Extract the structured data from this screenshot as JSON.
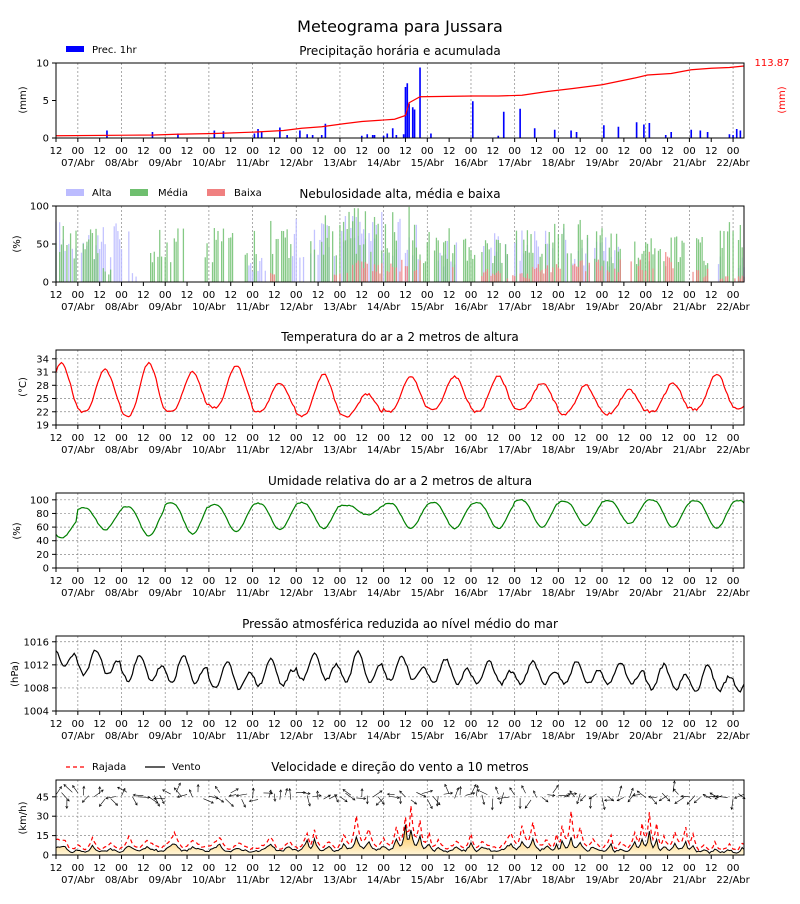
{
  "page": {
    "title": "Meteograma para Jussara"
  },
  "x_axis": {
    "start_index": 0,
    "end_index": 378,
    "hour_labels": [
      "12",
      "00",
      "12",
      "00",
      "12",
      "00",
      "12",
      "00",
      "12",
      "00",
      "12",
      "00",
      "12",
      "00",
      "12",
      "00",
      "12",
      "00",
      "12",
      "00",
      "12",
      "00",
      "12",
      "00",
      "12",
      "00",
      "12",
      "00",
      "12",
      "00",
      "12",
      "00"
    ],
    "date_labels": [
      "07/Abr",
      "08/Abr",
      "09/Abr",
      "10/Abr",
      "11/Abr",
      "12/Abr",
      "13/Abr",
      "14/Abr",
      "15/Abr",
      "16/Abr",
      "17/Abr",
      "18/Abr",
      "19/Abr",
      "20/Abr",
      "21/Abr",
      "22/Abr"
    ]
  },
  "chart_data": [
    {
      "id": "precip",
      "type": "bar",
      "title": "Precipitação horária e acumulada",
      "ylabel": "(mm)",
      "ylabel_right": "(mm)",
      "ylim": [
        0,
        10
      ],
      "yticks": [
        0,
        5,
        10
      ],
      "legend": [
        "Prec. 1hr"
      ],
      "colors": {
        "bars": "#0000ff",
        "accum": "#ff0000"
      },
      "accum_max_label": "113.87",
      "bars": [
        [
          28,
          1.0
        ],
        [
          53,
          0.8
        ],
        [
          67,
          0.6
        ],
        [
          87,
          1.0
        ],
        [
          92,
          0.9
        ],
        [
          109,
          0.6
        ],
        [
          111,
          1.2
        ],
        [
          113,
          0.8
        ],
        [
          123,
          1.4
        ],
        [
          127,
          0.4
        ],
        [
          134,
          1.0
        ],
        [
          138,
          0.5
        ],
        [
          141,
          0.4
        ],
        [
          146,
          0.4
        ],
        [
          148,
          1.9
        ],
        [
          168,
          0.3
        ],
        [
          171,
          0.5
        ],
        [
          174,
          0.4
        ],
        [
          175,
          0.4
        ],
        [
          180,
          0.3
        ],
        [
          182,
          0.6
        ],
        [
          185,
          1.3
        ],
        [
          187,
          0.4
        ],
        [
          191,
          0.5
        ],
        [
          192,
          6.8
        ],
        [
          193,
          7.3
        ],
        [
          194,
          4.6
        ],
        [
          196,
          4.1
        ],
        [
          197,
          3.8
        ],
        [
          200,
          9.4
        ],
        [
          206,
          0.6
        ],
        [
          229,
          4.9
        ],
        [
          246,
          3.5
        ],
        [
          243,
          0.3
        ],
        [
          255,
          3.9
        ],
        [
          263,
          1.3
        ],
        [
          274,
          1.1
        ],
        [
          283,
          1.0
        ],
        [
          286,
          0.8
        ],
        [
          301,
          1.7
        ],
        [
          309,
          1.5
        ],
        [
          319,
          2.1
        ],
        [
          323,
          1.8
        ],
        [
          326,
          2.0
        ],
        [
          335,
          0.4
        ],
        [
          338,
          0.8
        ],
        [
          349,
          1.1
        ],
        [
          358,
          0.8
        ],
        [
          354,
          1.0
        ],
        [
          370,
          0.5
        ],
        [
          372,
          0.4
        ],
        [
          374,
          1.2
        ],
        [
          376,
          1.0
        ]
      ],
      "accum_points": [
        [
          0,
          0.3
        ],
        [
          54,
          0.4
        ],
        [
          66,
          0.5
        ],
        [
          87,
          0.6
        ],
        [
          110,
          0.8
        ],
        [
          125,
          1.0
        ],
        [
          135,
          1.3
        ],
        [
          146,
          1.5
        ],
        [
          158,
          1.9
        ],
        [
          168,
          2.2
        ],
        [
          186,
          2.5
        ],
        [
          192,
          3.0
        ],
        [
          194,
          4.7
        ],
        [
          200,
          5.5
        ],
        [
          229,
          5.6
        ],
        [
          243,
          5.6
        ],
        [
          256,
          5.7
        ],
        [
          270,
          6.2
        ],
        [
          284,
          6.6
        ],
        [
          300,
          7.1
        ],
        [
          318,
          8.0
        ],
        [
          325,
          8.4
        ],
        [
          338,
          8.6
        ],
        [
          349,
          9.1
        ],
        [
          360,
          9.3
        ],
        [
          370,
          9.4
        ],
        [
          378,
          9.6
        ]
      ]
    },
    {
      "id": "clouds",
      "type": "bar",
      "title": "Nebulosidade alta, média e baixa",
      "ylabel": "(%)",
      "ylim": [
        0,
        100
      ],
      "yticks": [
        0,
        50,
        100
      ],
      "legend": [
        "Alta",
        "Média",
        "Baixa"
      ],
      "colors": {
        "alta": "#bcbcff",
        "media": "#6fbf6f",
        "baixa": "#f08080"
      },
      "alta_ranges": [
        [
          0,
          40,
          70
        ],
        [
          41,
          44,
          10
        ],
        [
          105,
          115,
          30
        ],
        [
          130,
          180,
          80
        ],
        [
          185,
          200,
          70
        ],
        [
          210,
          220,
          50
        ],
        [
          235,
          260,
          60
        ],
        [
          262,
          280,
          70
        ],
        [
          283,
          310,
          50
        ],
        [
          360,
          378,
          30
        ]
      ],
      "media_ranges": [
        [
          0,
          25,
          70
        ],
        [
          26,
          30,
          20
        ],
        [
          52,
          70,
          60
        ],
        [
          82,
          98,
          60
        ],
        [
          103,
          110,
          60
        ],
        [
          117,
          138,
          70
        ],
        [
          140,
          200,
          85
        ],
        [
          202,
          230,
          60
        ],
        [
          234,
          248,
          50
        ],
        [
          252,
          292,
          70
        ],
        [
          296,
          312,
          60
        ],
        [
          318,
          345,
          50
        ],
        [
          351,
          358,
          50
        ],
        [
          365,
          378,
          70
        ]
      ],
      "baixa_ranges": [
        [
          118,
          120,
          10
        ],
        [
          152,
          156,
          20
        ],
        [
          160,
          200,
          25
        ],
        [
          210,
          218,
          25
        ],
        [
          234,
          248,
          15
        ],
        [
          248,
          260,
          10
        ],
        [
          262,
          280,
          20
        ],
        [
          283,
          310,
          25
        ],
        [
          316,
          340,
          35
        ],
        [
          350,
          358,
          15
        ],
        [
          365,
          378,
          8
        ]
      ]
    },
    {
      "id": "temp",
      "type": "line",
      "title": "Temperatura do ar a 2 metros de altura",
      "ylabel": "(°C)",
      "ylim": [
        19,
        36
      ],
      "yticks": [
        19,
        22,
        25,
        28,
        31,
        34
      ],
      "color": "#ff0000",
      "min": [
        22.0,
        22.0,
        21.0,
        22.0,
        23.0,
        22.0,
        21.0,
        21.0,
        22.0,
        22.5,
        22.0,
        22.5,
        21.5,
        21.5,
        22.0,
        22.5
      ],
      "max": [
        33.0,
        31.5,
        33.0,
        31.0,
        32.5,
        28.5,
        30.5,
        26.0,
        30.0,
        30.0,
        30.0,
        28.5,
        28.0,
        27.0,
        28.5,
        30.5
      ]
    },
    {
      "id": "rh",
      "type": "line",
      "title": "Umidade relativa do ar a 2 metros de altura",
      "ylabel": "(%)",
      "ylim": [
        0,
        110
      ],
      "yticks": [
        0,
        20,
        40,
        60,
        80,
        100
      ],
      "color": "#008000",
      "min": [
        44,
        56,
        47,
        50,
        53,
        56,
        58,
        78,
        58,
        58,
        58,
        60,
        62,
        65,
        60,
        58
      ],
      "max": [
        72,
        88,
        90,
        96,
        93,
        95,
        96,
        92,
        95,
        96,
        96,
        100,
        98,
        99,
        100,
        99
      ]
    },
    {
      "id": "press",
      "type": "line",
      "title": "Pressão atmosférica reduzida ao nível médio do mar",
      "ylabel": "(hPa)",
      "ylim": [
        1004,
        1017
      ],
      "yticks": [
        1004,
        1008,
        1012,
        1016
      ],
      "color": "#000000",
      "high": [
        1015.5,
        1014.5,
        1013.5,
        1013.5,
        1012.5,
        1013.0,
        1014.0,
        1014.5,
        1013.5,
        1013.0,
        1012.5,
        1012.5,
        1012.5,
        1012.5,
        1012.0,
        1012.0
      ],
      "low": [
        1011.0,
        1009.5,
        1008.5,
        1008.0,
        1007.0,
        1007.5,
        1008.5,
        1008.0,
        1008.5,
        1008.0,
        1008.0,
        1008.0,
        1008.0,
        1008.0,
        1007.0,
        1006.5
      ]
    },
    {
      "id": "wind",
      "type": "line",
      "title": "Velocidade e direção do vento a 10 metros",
      "ylabel": "(km/h)",
      "ylim": [
        0,
        58
      ],
      "yticks": [
        0,
        15,
        30,
        45
      ],
      "legend": [
        "Rajada",
        "Vento"
      ],
      "colors": {
        "rajada": "#ff0000",
        "vento": "#000000",
        "fill_top": "#ffcc66",
        "fill_bottom": "#fff2cc",
        "arrows": "#000000"
      },
      "gust_peaks": [
        [
          5,
          12
        ],
        [
          12,
          8
        ],
        [
          20,
          13
        ],
        [
          30,
          9
        ],
        [
          40,
          14
        ],
        [
          50,
          11
        ],
        [
          65,
          17
        ],
        [
          75,
          12
        ],
        [
          90,
          14
        ],
        [
          100,
          9
        ],
        [
          118,
          14
        ],
        [
          128,
          10
        ],
        [
          138,
          17
        ],
        [
          142,
          20
        ],
        [
          150,
          10
        ],
        [
          158,
          15
        ],
        [
          165,
          30
        ],
        [
          172,
          20
        ],
        [
          180,
          13
        ],
        [
          187,
          22
        ],
        [
          192,
          30
        ],
        [
          195,
          38
        ],
        [
          200,
          27
        ],
        [
          205,
          17
        ],
        [
          210,
          12
        ],
        [
          220,
          11
        ],
        [
          228,
          16
        ],
        [
          234,
          10
        ],
        [
          250,
          17
        ],
        [
          256,
          22
        ],
        [
          262,
          26
        ],
        [
          270,
          12
        ],
        [
          275,
          16
        ],
        [
          278,
          22
        ],
        [
          283,
          34
        ],
        [
          288,
          22
        ],
        [
          295,
          12
        ],
        [
          305,
          15
        ],
        [
          310,
          10
        ],
        [
          318,
          18
        ],
        [
          322,
          25
        ],
        [
          326,
          33
        ],
        [
          330,
          24
        ],
        [
          334,
          14
        ],
        [
          340,
          18
        ],
        [
          346,
          22
        ],
        [
          350,
          17
        ],
        [
          356,
          8
        ],
        [
          362,
          10
        ],
        [
          370,
          8
        ],
        [
          377,
          9
        ]
      ],
      "speed_peaks": [
        [
          5,
          6
        ],
        [
          12,
          4
        ],
        [
          20,
          7
        ],
        [
          30,
          5
        ],
        [
          40,
          7
        ],
        [
          50,
          6
        ],
        [
          65,
          9
        ],
        [
          75,
          6
        ],
        [
          90,
          8
        ],
        [
          100,
          5
        ],
        [
          118,
          8
        ],
        [
          128,
          6
        ],
        [
          138,
          11
        ],
        [
          142,
          12
        ],
        [
          150,
          6
        ],
        [
          158,
          8
        ],
        [
          165,
          14
        ],
        [
          172,
          10
        ],
        [
          180,
          7
        ],
        [
          187,
          12
        ],
        [
          192,
          25
        ],
        [
          195,
          20
        ],
        [
          200,
          14
        ],
        [
          205,
          9
        ],
        [
          210,
          6
        ],
        [
          220,
          6
        ],
        [
          228,
          9
        ],
        [
          234,
          6
        ],
        [
          250,
          9
        ],
        [
          256,
          11
        ],
        [
          262,
          12
        ],
        [
          270,
          7
        ],
        [
          275,
          8
        ],
        [
          278,
          11
        ],
        [
          283,
          13
        ],
        [
          288,
          10
        ],
        [
          295,
          6
        ],
        [
          305,
          8
        ],
        [
          310,
          5
        ],
        [
          318,
          10
        ],
        [
          322,
          13
        ],
        [
          326,
          18
        ],
        [
          330,
          12
        ],
        [
          334,
          7
        ],
        [
          340,
          9
        ],
        [
          346,
          10
        ],
        [
          350,
          8
        ],
        [
          356,
          4
        ],
        [
          362,
          5
        ],
        [
          370,
          4
        ],
        [
          377,
          5
        ]
      ]
    }
  ]
}
